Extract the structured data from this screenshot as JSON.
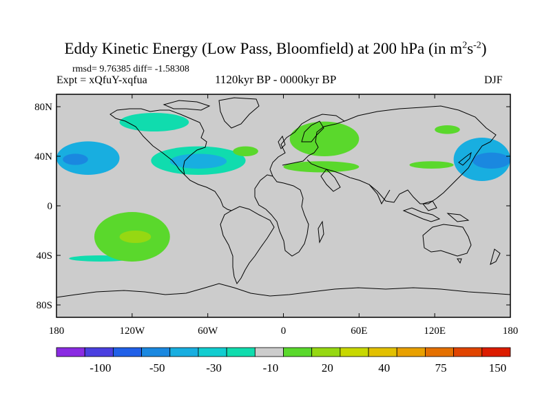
{
  "chart_data": {
    "type": "heatmap",
    "title": "Eddy Kinetic Energy (Low Pass, Bloomfield) at 200 hPa (in m",
    "title_sup1": "2",
    "title_mid": "s",
    "title_sup2": "-2",
    "title_end": ")",
    "stats_text": "rmsd= 9.76385 diff= -1.58308",
    "experiment_text": "Expt = xQfuY-xqfua",
    "period_text": "1120kyr BP - 0000kyr BP",
    "season_text": "DJF",
    "rmsd": 9.76385,
    "diff": -1.58308,
    "x_range": [
      -180,
      180
    ],
    "y_range": [
      -90,
      90
    ],
    "x_ticks": [
      {
        "value": -180,
        "label": "180"
      },
      {
        "value": -120,
        "label": "120W"
      },
      {
        "value": -60,
        "label": "60W"
      },
      {
        "value": 0,
        "label": "0"
      },
      {
        "value": 60,
        "label": "60E"
      },
      {
        "value": 120,
        "label": "120E"
      },
      {
        "value": 180,
        "label": "180"
      }
    ],
    "y_ticks": [
      {
        "value": 80,
        "label": "80N"
      },
      {
        "value": 40,
        "label": "40N"
      },
      {
        "value": 0,
        "label": "0"
      },
      {
        "value": -40,
        "label": "40S"
      },
      {
        "value": -80,
        "label": "80S"
      }
    ],
    "colorbar": {
      "levels": [
        -100,
        -50,
        -30,
        -10,
        20,
        40,
        75,
        150
      ],
      "labels": [
        "-100",
        "-50",
        "-30",
        "-10",
        "20",
        "40",
        "75",
        "150"
      ],
      "colors": [
        "#8a2be2",
        "#4a3fe0",
        "#2060e8",
        "#1a88e0",
        "#18aee0",
        "#12cdd0",
        "#10dcae",
        "#cccccc",
        "#5ad82c",
        "#96d812",
        "#c8d800",
        "#e2c000",
        "#e8a000",
        "#e47000",
        "#e04400",
        "#dc1c00"
      ]
    },
    "background_color": "#cccccc",
    "anomaly_regions": [
      {
        "sign": "negative",
        "level": -30,
        "lon": [
          -180,
          -130
        ],
        "lat": [
          25,
          52
        ]
      },
      {
        "sign": "negative",
        "level": -50,
        "lon": [
          -175,
          -155
        ],
        "lat": [
          33,
          42
        ]
      },
      {
        "sign": "negative",
        "level": -10,
        "lon": [
          -105,
          -30
        ],
        "lat": [
          25,
          48
        ]
      },
      {
        "sign": "negative",
        "level": -30,
        "lon": [
          -90,
          -45
        ],
        "lat": [
          30,
          42
        ]
      },
      {
        "sign": "negative",
        "level": -10,
        "lon": [
          -170,
          -120
        ],
        "lat": [
          -45,
          -40
        ]
      },
      {
        "sign": "negative",
        "level": -10,
        "lon": [
          -130,
          -75
        ],
        "lat": [
          60,
          75
        ]
      },
      {
        "sign": "negative",
        "level": -30,
        "lon": [
          135,
          180
        ],
        "lat": [
          20,
          55
        ]
      },
      {
        "sign": "negative",
        "level": -50,
        "lon": [
          150,
          180
        ],
        "lat": [
          30,
          43
        ]
      },
      {
        "sign": "positive",
        "level": 20,
        "lon": [
          -150,
          -90
        ],
        "lat": [
          -45,
          -5
        ]
      },
      {
        "sign": "positive",
        "level": 40,
        "lon": [
          -130,
          -105
        ],
        "lat": [
          -30,
          -20
        ]
      },
      {
        "sign": "positive",
        "level": 20,
        "lon": [
          -40,
          -20
        ],
        "lat": [
          40,
          48
        ]
      },
      {
        "sign": "positive",
        "level": 20,
        "lon": [
          5,
          60
        ],
        "lat": [
          40,
          68
        ]
      },
      {
        "sign": "positive",
        "level": 20,
        "lon": [
          0,
          60
        ],
        "lat": [
          27,
          36
        ]
      },
      {
        "sign": "positive",
        "level": 20,
        "lon": [
          120,
          140
        ],
        "lat": [
          58,
          65
        ]
      },
      {
        "sign": "positive",
        "level": 20,
        "lon": [
          100,
          135
        ],
        "lat": [
          30,
          36
        ]
      }
    ]
  }
}
